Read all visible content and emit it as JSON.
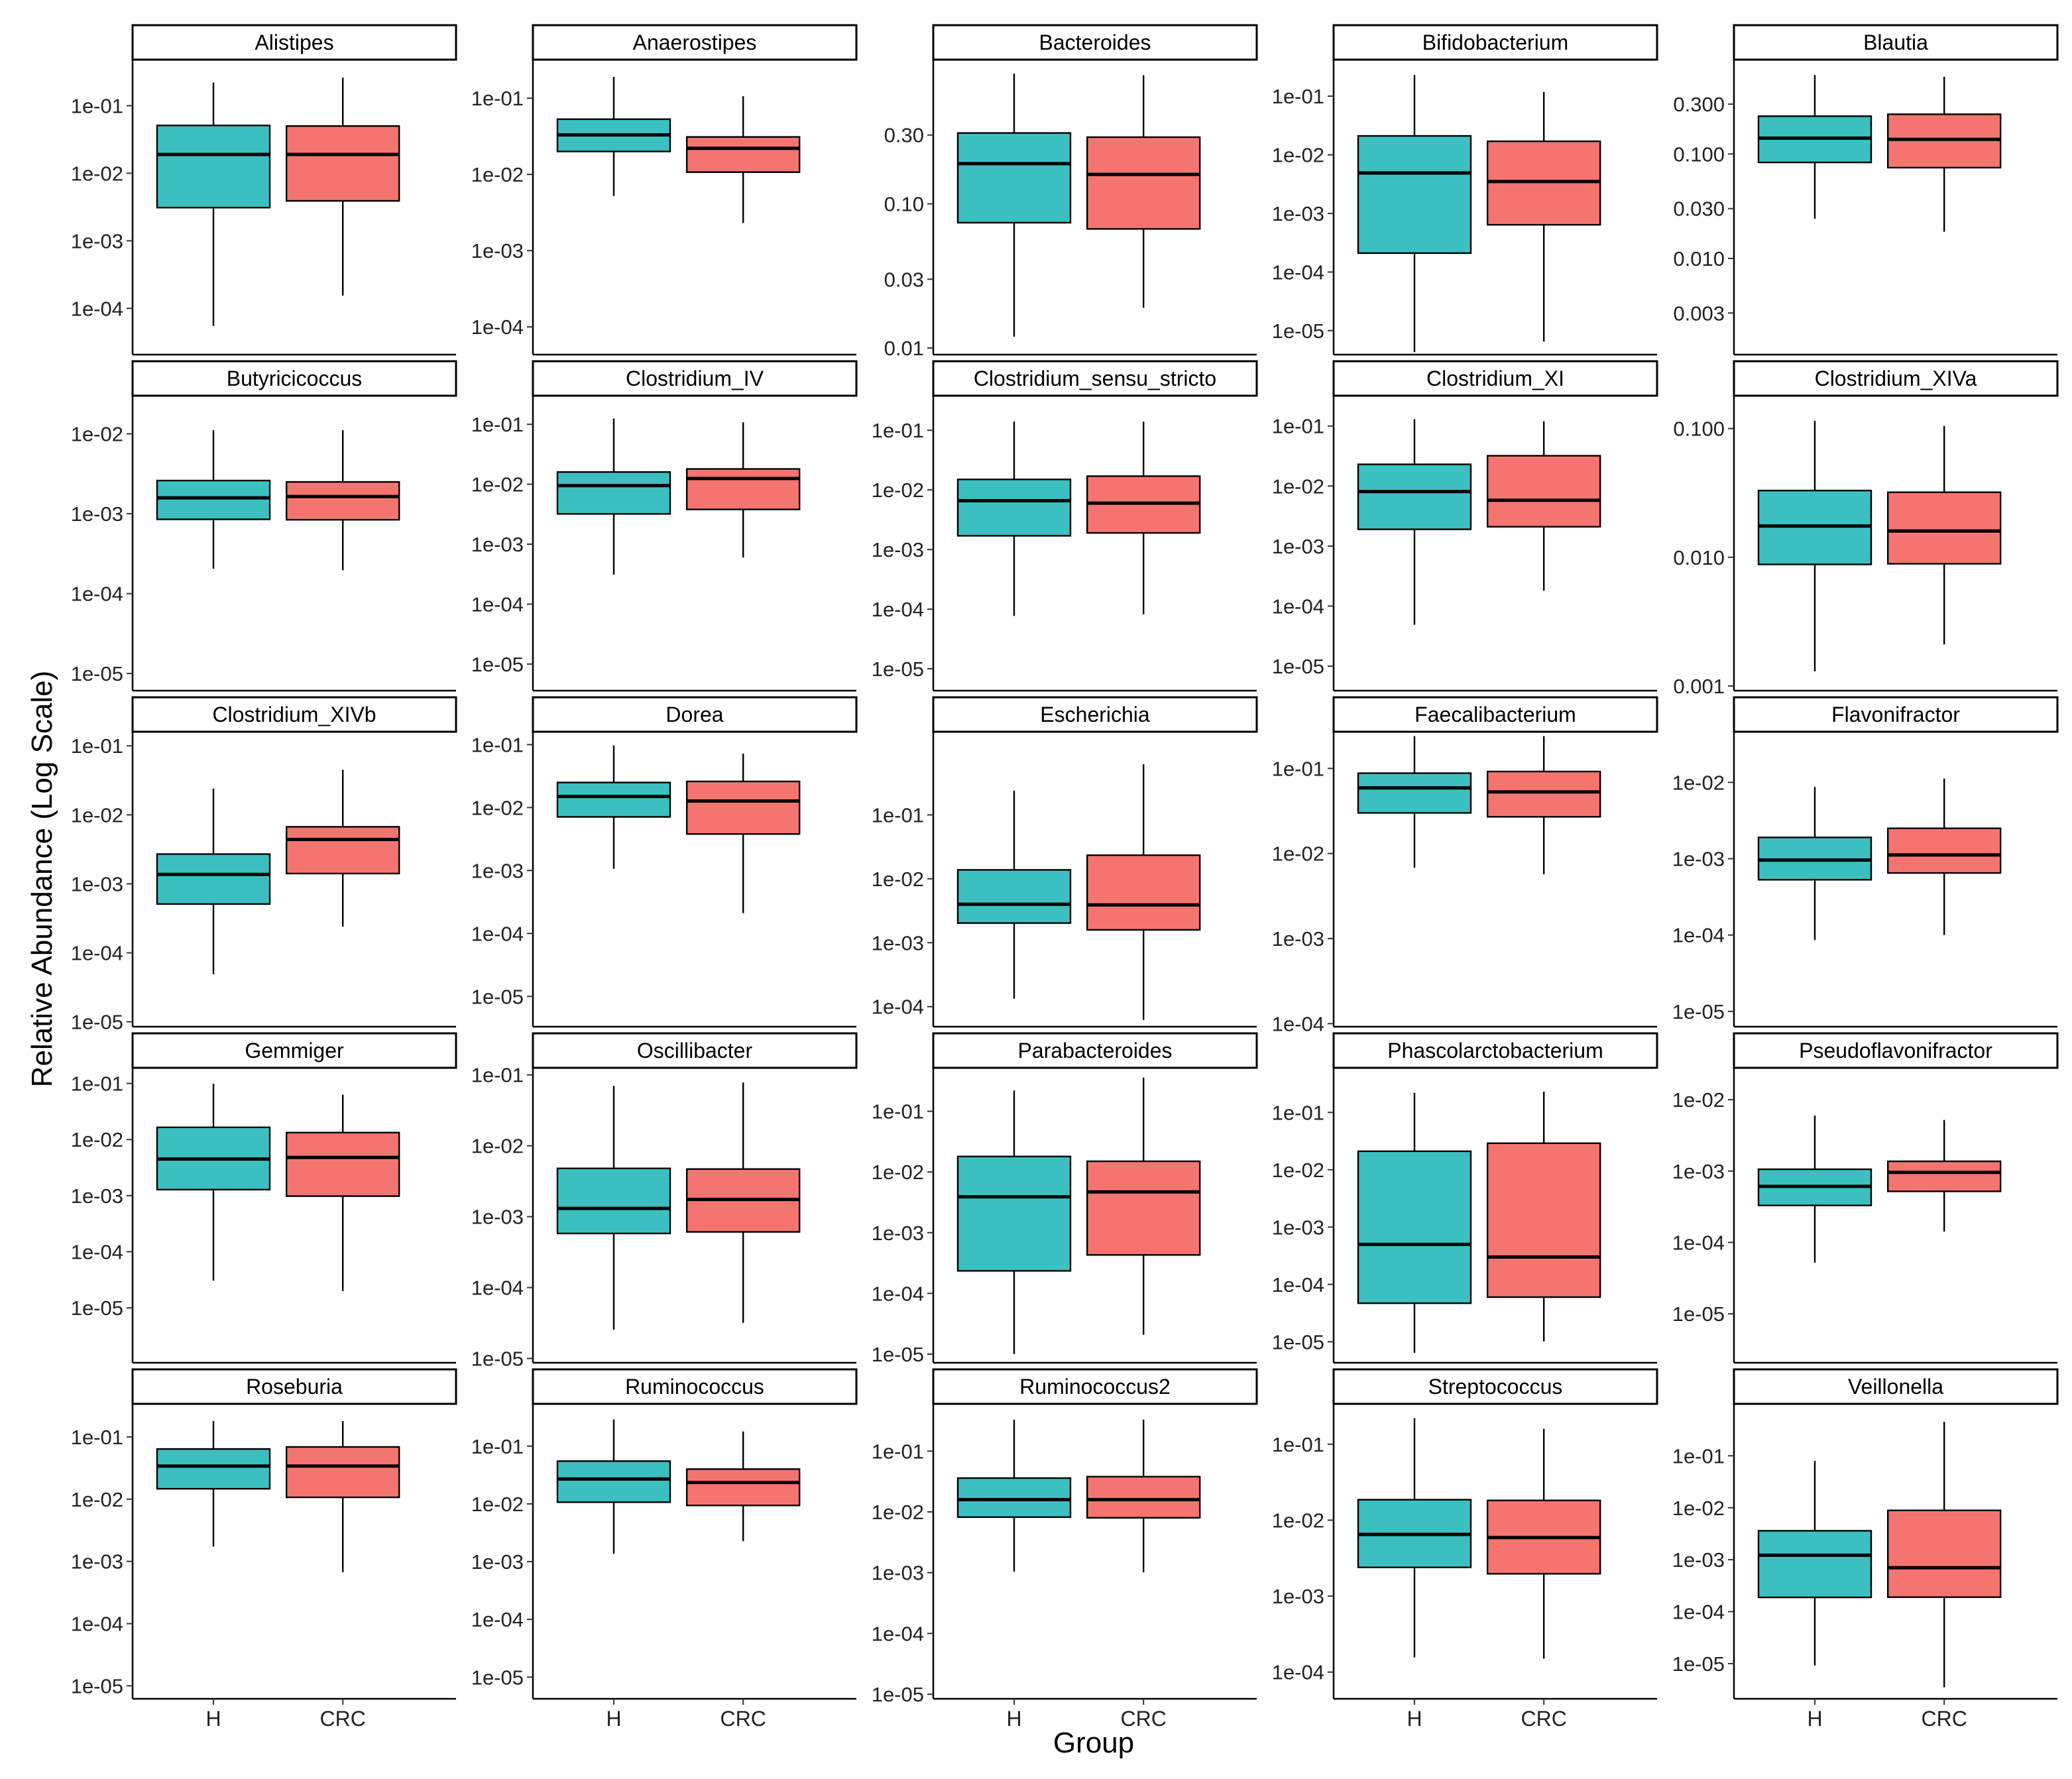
{
  "chart_data": {
    "type": "box",
    "ylabel": "Relative Abundance (Log Scale)",
    "xlabel": "Group",
    "groups": [
      "H",
      "CRC"
    ],
    "colors": {
      "H": "#3CBFC0",
      "CRC": "#F47570"
    },
    "panels": [
      {
        "title": "Alistipes",
        "ticks": [
          0.1,
          0.01,
          0.001,
          0.0001
        ],
        "tick_labels": [
          "1e-01",
          "1e-02",
          "1e-03",
          "1e-04"
        ],
        "ylim": [
          2.07e-05,
          0.48
        ],
        "boxes": [
          {
            "group": "H",
            "min": 5.5e-05,
            "q1": 0.0031,
            "median": 0.019,
            "q3": 0.051,
            "max": 0.22
          },
          {
            "group": "CRC",
            "min": 0.000155,
            "q1": 0.0039,
            "median": 0.019,
            "q3": 0.05,
            "max": 0.26
          }
        ]
      },
      {
        "title": "Anaerostipes",
        "ticks": [
          0.1,
          0.01,
          0.001,
          0.0001
        ],
        "tick_labels": [
          "1e-01",
          "1e-02",
          "1e-03",
          "1e-04"
        ],
        "ylim": [
          4.33e-05,
          0.32
        ],
        "boxes": [
          {
            "group": "H",
            "min": 0.0052,
            "q1": 0.02,
            "median": 0.033,
            "q3": 0.053,
            "max": 0.19
          },
          {
            "group": "CRC",
            "min": 0.0023,
            "q1": 0.0107,
            "median": 0.022,
            "q3": 0.031,
            "max": 0.106
          }
        ]
      },
      {
        "title": "Bacteroides",
        "ticks": [
          0.3,
          0.1,
          0.03,
          0.01
        ],
        "tick_labels": [
          "0.30",
          "0.10",
          "0.03",
          "0.01"
        ],
        "ylim": [
          0.009,
          1.0
        ],
        "boxes": [
          {
            "group": "H",
            "min": 0.012,
            "q1": 0.074,
            "median": 0.19,
            "q3": 0.31,
            "max": 0.8
          },
          {
            "group": "CRC",
            "min": 0.019,
            "q1": 0.067,
            "median": 0.16,
            "q3": 0.29,
            "max": 0.78
          }
        ]
      },
      {
        "title": "Bifidobacterium",
        "ticks": [
          0.1,
          0.01,
          0.001,
          0.0001,
          1e-05
        ],
        "tick_labels": [
          "1e-01",
          "1e-02",
          "1e-03",
          "1e-04",
          "1e-05"
        ],
        "ylim": [
          3.9e-06,
          0.42
        ],
        "boxes": [
          {
            "group": "H",
            "min": 4.3e-06,
            "q1": 0.00021,
            "median": 0.0049,
            "q3": 0.021,
            "max": 0.23
          },
          {
            "group": "CRC",
            "min": 6.5e-06,
            "q1": 0.00064,
            "median": 0.0035,
            "q3": 0.017,
            "max": 0.118
          }
        ]
      },
      {
        "title": "Blautia",
        "ticks": [
          0.3,
          0.1,
          0.03,
          0.01,
          0.003
        ],
        "tick_labels": [
          "0.300",
          "0.100",
          "0.030",
          "0.010",
          "0.003"
        ],
        "ylim": [
          0.0012,
          0.8
        ],
        "boxes": [
          {
            "group": "H",
            "min": 0.024,
            "q1": 0.083,
            "median": 0.142,
            "q3": 0.23,
            "max": 0.57
          },
          {
            "group": "CRC",
            "min": 0.018,
            "q1": 0.074,
            "median": 0.138,
            "q3": 0.24,
            "max": 0.55
          }
        ]
      },
      {
        "title": "Butyricicoccus",
        "ticks": [
          0.01,
          0.001,
          0.0001,
          1e-05
        ],
        "tick_labels": [
          "1e-02",
          "1e-03",
          "1e-04",
          "1e-05"
        ],
        "ylim": [
          6.1e-06,
          0.03
        ],
        "boxes": [
          {
            "group": "H",
            "min": 0.000205,
            "q1": 0.00085,
            "median": 0.00158,
            "q3": 0.0026,
            "max": 0.0111
          },
          {
            "group": "CRC",
            "min": 0.000196,
            "q1": 0.00084,
            "median": 0.00164,
            "q3": 0.0025,
            "max": 0.0111
          }
        ]
      },
      {
        "title": "Clostridium_IV",
        "ticks": [
          0.1,
          0.01,
          0.001,
          0.0001,
          1e-05
        ],
        "tick_labels": [
          "1e-01",
          "1e-02",
          "1e-03",
          "1e-04",
          "1e-05"
        ],
        "ylim": [
          3.6e-06,
          0.3
        ],
        "boxes": [
          {
            "group": "H",
            "min": 0.00031,
            "q1": 0.0032,
            "median": 0.0095,
            "q3": 0.016,
            "max": 0.125
          },
          {
            "group": "CRC",
            "min": 0.0006,
            "q1": 0.0038,
            "median": 0.0125,
            "q3": 0.018,
            "max": 0.108
          }
        ]
      },
      {
        "title": "Clostridium_sensu_stricto",
        "ticks": [
          0.1,
          0.01,
          0.001,
          0.0001,
          1e-05
        ],
        "tick_labels": [
          "1e-01",
          "1e-02",
          "1e-03",
          "1e-04",
          "1e-05"
        ],
        "ylim": [
          4.3e-06,
          0.38
        ],
        "boxes": [
          {
            "group": "H",
            "min": 7.7e-05,
            "q1": 0.0017,
            "median": 0.0066,
            "q3": 0.015,
            "max": 0.14
          },
          {
            "group": "CRC",
            "min": 8.2e-05,
            "q1": 0.0019,
            "median": 0.006,
            "q3": 0.017,
            "max": 0.14
          }
        ]
      },
      {
        "title": "Clostridium_XI",
        "ticks": [
          0.1,
          0.01,
          0.001,
          0.0001,
          1e-05
        ],
        "tick_labels": [
          "1e-01",
          "1e-02",
          "1e-03",
          "1e-04",
          "1e-05"
        ],
        "ylim": [
          3.9e-06,
          0.32
        ],
        "boxes": [
          {
            "group": "H",
            "min": 4.9e-05,
            "q1": 0.0019,
            "median": 0.0081,
            "q3": 0.023,
            "max": 0.13
          },
          {
            "group": "CRC",
            "min": 0.00018,
            "q1": 0.0021,
            "median": 0.0058,
            "q3": 0.032,
            "max": 0.12
          }
        ]
      },
      {
        "title": "Clostridium_XIVa",
        "ticks": [
          0.1,
          0.01,
          0.001
        ],
        "tick_labels": [
          "0.100",
          "0.010",
          "0.001"
        ],
        "ylim": [
          0.00092,
          0.18
        ],
        "boxes": [
          {
            "group": "H",
            "min": 0.0013,
            "q1": 0.0088,
            "median": 0.0175,
            "q3": 0.033,
            "max": 0.115
          },
          {
            "group": "CRC",
            "min": 0.0021,
            "q1": 0.0089,
            "median": 0.016,
            "q3": 0.032,
            "max": 0.105
          }
        ]
      },
      {
        "title": "Clostridium_XIVb",
        "ticks": [
          0.1,
          0.01,
          0.001,
          0.0001,
          1e-05
        ],
        "tick_labels": [
          "1e-01",
          "1e-02",
          "1e-03",
          "1e-04",
          "1e-05"
        ],
        "ylim": [
          8.5e-06,
          0.16
        ],
        "boxes": [
          {
            "group": "H",
            "min": 4.9e-05,
            "q1": 0.00051,
            "median": 0.00137,
            "q3": 0.0027,
            "max": 0.024
          },
          {
            "group": "CRC",
            "min": 0.00024,
            "q1": 0.00141,
            "median": 0.0044,
            "q3": 0.0067,
            "max": 0.045
          }
        ]
      },
      {
        "title": "Dorea",
        "ticks": [
          0.1,
          0.01,
          0.001,
          0.0001,
          1e-05
        ],
        "tick_labels": [
          "1e-01",
          "1e-02",
          "1e-03",
          "1e-04",
          "1e-05"
        ],
        "ylim": [
          3.3e-06,
          0.16
        ],
        "boxes": [
          {
            "group": "H",
            "min": 0.00106,
            "q1": 0.0071,
            "median": 0.015,
            "q3": 0.025,
            "max": 0.097
          },
          {
            "group": "CRC",
            "min": 0.00021,
            "q1": 0.0038,
            "median": 0.0127,
            "q3": 0.026,
            "max": 0.072
          }
        ]
      },
      {
        "title": "Escherichia",
        "ticks": [
          0.1,
          0.01,
          0.001,
          0.0001
        ],
        "tick_labels": [
          "1e-01",
          "1e-02",
          "1e-03",
          "1e-04"
        ],
        "ylim": [
          4.85e-05,
          2.0
        ],
        "boxes": [
          {
            "group": "H",
            "min": 0.000133,
            "q1": 0.00203,
            "median": 0.004,
            "q3": 0.0138,
            "max": 0.24
          },
          {
            "group": "CRC",
            "min": 6.2e-05,
            "q1": 0.00159,
            "median": 0.0039,
            "q3": 0.0234,
            "max": 0.62
          }
        ]
      },
      {
        "title": "Faecalibacterium",
        "ticks": [
          0.1,
          0.01,
          0.001,
          0.0001
        ],
        "tick_labels": [
          "1e-01",
          "1e-02",
          "1e-03",
          "1e-04"
        ],
        "ylim": [
          9.2e-05,
          0.27
        ],
        "boxes": [
          {
            "group": "H",
            "min": 0.0068,
            "q1": 0.03,
            "median": 0.059,
            "q3": 0.088,
            "max": 0.24
          },
          {
            "group": "CRC",
            "min": 0.0057,
            "q1": 0.027,
            "median": 0.053,
            "q3": 0.092,
            "max": 0.24
          }
        ]
      },
      {
        "title": "Flavonifractor",
        "ticks": [
          0.01,
          0.001,
          0.0001,
          1e-05
        ],
        "tick_labels": [
          "1e-02",
          "1e-03",
          "1e-04",
          "1e-05"
        ],
        "ylim": [
          6.3e-06,
          0.046
        ],
        "boxes": [
          {
            "group": "H",
            "min": 8.6e-05,
            "q1": 0.00053,
            "median": 0.00096,
            "q3": 0.0019,
            "max": 0.0087
          },
          {
            "group": "CRC",
            "min": 0.0001,
            "q1": 0.00065,
            "median": 0.00112,
            "q3": 0.0025,
            "max": 0.0112
          }
        ]
      },
      {
        "title": "Gemmiger",
        "ticks": [
          0.1,
          0.01,
          0.001,
          0.0001,
          1e-05
        ],
        "tick_labels": [
          "1e-01",
          "1e-02",
          "1e-03",
          "1e-04",
          "1e-05"
        ],
        "ylim": [
          1.05e-06,
          0.19
        ],
        "boxes": [
          {
            "group": "H",
            "min": 3.05e-05,
            "q1": 0.00128,
            "median": 0.0045,
            "q3": 0.0165,
            "max": 0.099
          },
          {
            "group": "CRC",
            "min": 1.99e-05,
            "q1": 0.00098,
            "median": 0.0048,
            "q3": 0.0133,
            "max": 0.063
          }
        ]
      },
      {
        "title": "Oscillibacter",
        "ticks": [
          0.1,
          0.01,
          0.001,
          0.0001,
          1e-05
        ],
        "tick_labels": [
          "1e-01",
          "1e-02",
          "1e-03",
          "1e-04",
          "1e-05"
        ],
        "ylim": [
          8.7e-06,
          0.126
        ],
        "boxes": [
          {
            "group": "H",
            "min": 2.55e-05,
            "q1": 0.00058,
            "median": 0.00131,
            "q3": 0.0048,
            "max": 0.07
          },
          {
            "group": "CRC",
            "min": 3.18e-05,
            "q1": 0.00061,
            "median": 0.00175,
            "q3": 0.0047,
            "max": 0.078
          }
        ]
      },
      {
        "title": "Parabacteroides",
        "ticks": [
          0.1,
          0.01,
          0.001,
          0.0001,
          1e-05
        ],
        "tick_labels": [
          "1e-01",
          "1e-02",
          "1e-03",
          "1e-04",
          "1e-05"
        ],
        "ylim": [
          7.2e-06,
          0.52
        ],
        "boxes": [
          {
            "group": "H",
            "min": 1e-05,
            "q1": 0.000235,
            "median": 0.0039,
            "q3": 0.018,
            "max": 0.22
          },
          {
            "group": "CRC",
            "min": 2.08e-05,
            "q1": 0.00043,
            "median": 0.0047,
            "q3": 0.015,
            "max": 0.36
          }
        ]
      },
      {
        "title": "Phascolarctobacterium",
        "ticks": [
          0.1,
          0.01,
          0.001,
          0.0001,
          1e-05
        ],
        "tick_labels": [
          "1e-01",
          "1e-02",
          "1e-03",
          "1e-04",
          "1e-05"
        ],
        "ylim": [
          4.3e-06,
          0.6
        ],
        "boxes": [
          {
            "group": "H",
            "min": 6.4e-06,
            "q1": 4.7e-05,
            "median": 0.0005,
            "q3": 0.021,
            "max": 0.22
          },
          {
            "group": "CRC",
            "min": 1.01e-05,
            "q1": 6e-05,
            "median": 0.0003,
            "q3": 0.029,
            "max": 0.23
          }
        ]
      },
      {
        "title": "Pseudoflavonifractor",
        "ticks": [
          0.01,
          0.001,
          0.0001,
          1e-05
        ],
        "tick_labels": [
          "1e-02",
          "1e-03",
          "1e-04",
          "1e-05"
        ],
        "ylim": [
          2.06e-06,
          0.028
        ],
        "boxes": [
          {
            "group": "H",
            "min": 5.2e-05,
            "q1": 0.00033,
            "median": 0.00061,
            "q3": 0.00106,
            "max": 0.006
          },
          {
            "group": "CRC",
            "min": 0.000142,
            "q1": 0.00052,
            "median": 0.00096,
            "q3": 0.00137,
            "max": 0.0052
          }
        ]
      },
      {
        "title": "Roseburia",
        "ticks": [
          0.1,
          0.01,
          0.001,
          0.0001,
          1e-05
        ],
        "tick_labels": [
          "1e-01",
          "1e-02",
          "1e-03",
          "1e-04",
          "1e-05"
        ],
        "ylim": [
          6.2e-06,
          0.34
        ],
        "boxes": [
          {
            "group": "H",
            "min": 0.00173,
            "q1": 0.0147,
            "median": 0.034,
            "q3": 0.064,
            "max": 0.18
          },
          {
            "group": "CRC",
            "min": 0.00067,
            "q1": 0.0107,
            "median": 0.034,
            "q3": 0.069,
            "max": 0.18
          }
        ]
      },
      {
        "title": "Ruminococcus",
        "ticks": [
          0.1,
          0.01,
          0.001,
          0.0001,
          1e-05
        ],
        "tick_labels": [
          "1e-01",
          "1e-02",
          "1e-03",
          "1e-04",
          "1e-05"
        ],
        "ylim": [
          4.21e-06,
          0.54
        ],
        "boxes": [
          {
            "group": "H",
            "min": 0.00137,
            "q1": 0.0107,
            "median": 0.027,
            "q3": 0.055,
            "max": 0.29
          },
          {
            "group": "CRC",
            "min": 0.00226,
            "q1": 0.0094,
            "median": 0.0235,
            "q3": 0.04,
            "max": 0.18
          }
        ]
      },
      {
        "title": "Ruminococcus2",
        "ticks": [
          0.1,
          0.01,
          0.001,
          0.0001,
          1e-05
        ],
        "tick_labels": [
          "1e-01",
          "1e-02",
          "1e-03",
          "1e-04",
          "1e-05"
        ],
        "ylim": [
          8.4e-06,
          0.6
        ],
        "boxes": [
          {
            "group": "H",
            "min": 0.00104,
            "q1": 0.0082,
            "median": 0.0159,
            "q3": 0.036,
            "max": 0.33
          },
          {
            "group": "CRC",
            "min": 0.00101,
            "q1": 0.008,
            "median": 0.0159,
            "q3": 0.038,
            "max": 0.33
          }
        ]
      },
      {
        "title": "Streptococcus",
        "ticks": [
          0.1,
          0.01,
          0.001,
          0.0001
        ],
        "tick_labels": [
          "1e-01",
          "1e-02",
          "1e-03",
          "1e-04"
        ],
        "ylim": [
          4.45e-05,
          0.34
        ],
        "boxes": [
          {
            "group": "H",
            "min": 0.000156,
            "q1": 0.00239,
            "median": 0.0065,
            "q3": 0.0186,
            "max": 0.22
          },
          {
            "group": "CRC",
            "min": 0.00015,
            "q1": 0.00197,
            "median": 0.0059,
            "q3": 0.0182,
            "max": 0.16
          }
        ]
      },
      {
        "title": "Veillonella",
        "ticks": [
          0.1,
          0.01,
          0.001,
          0.0001,
          1e-05
        ],
        "tick_labels": [
          "1e-01",
          "1e-02",
          "1e-03",
          "1e-04",
          "1e-05"
        ],
        "ylim": [
          2.1e-06,
          1.0
        ],
        "boxes": [
          {
            "group": "H",
            "min": 9.2e-06,
            "q1": 0.000188,
            "median": 0.00122,
            "q3": 0.0036,
            "max": 0.08
          },
          {
            "group": "CRC",
            "min": 3.5e-06,
            "q1": 0.00019,
            "median": 0.0007,
            "q3": 0.0089,
            "max": 0.45
          }
        ]
      }
    ]
  }
}
